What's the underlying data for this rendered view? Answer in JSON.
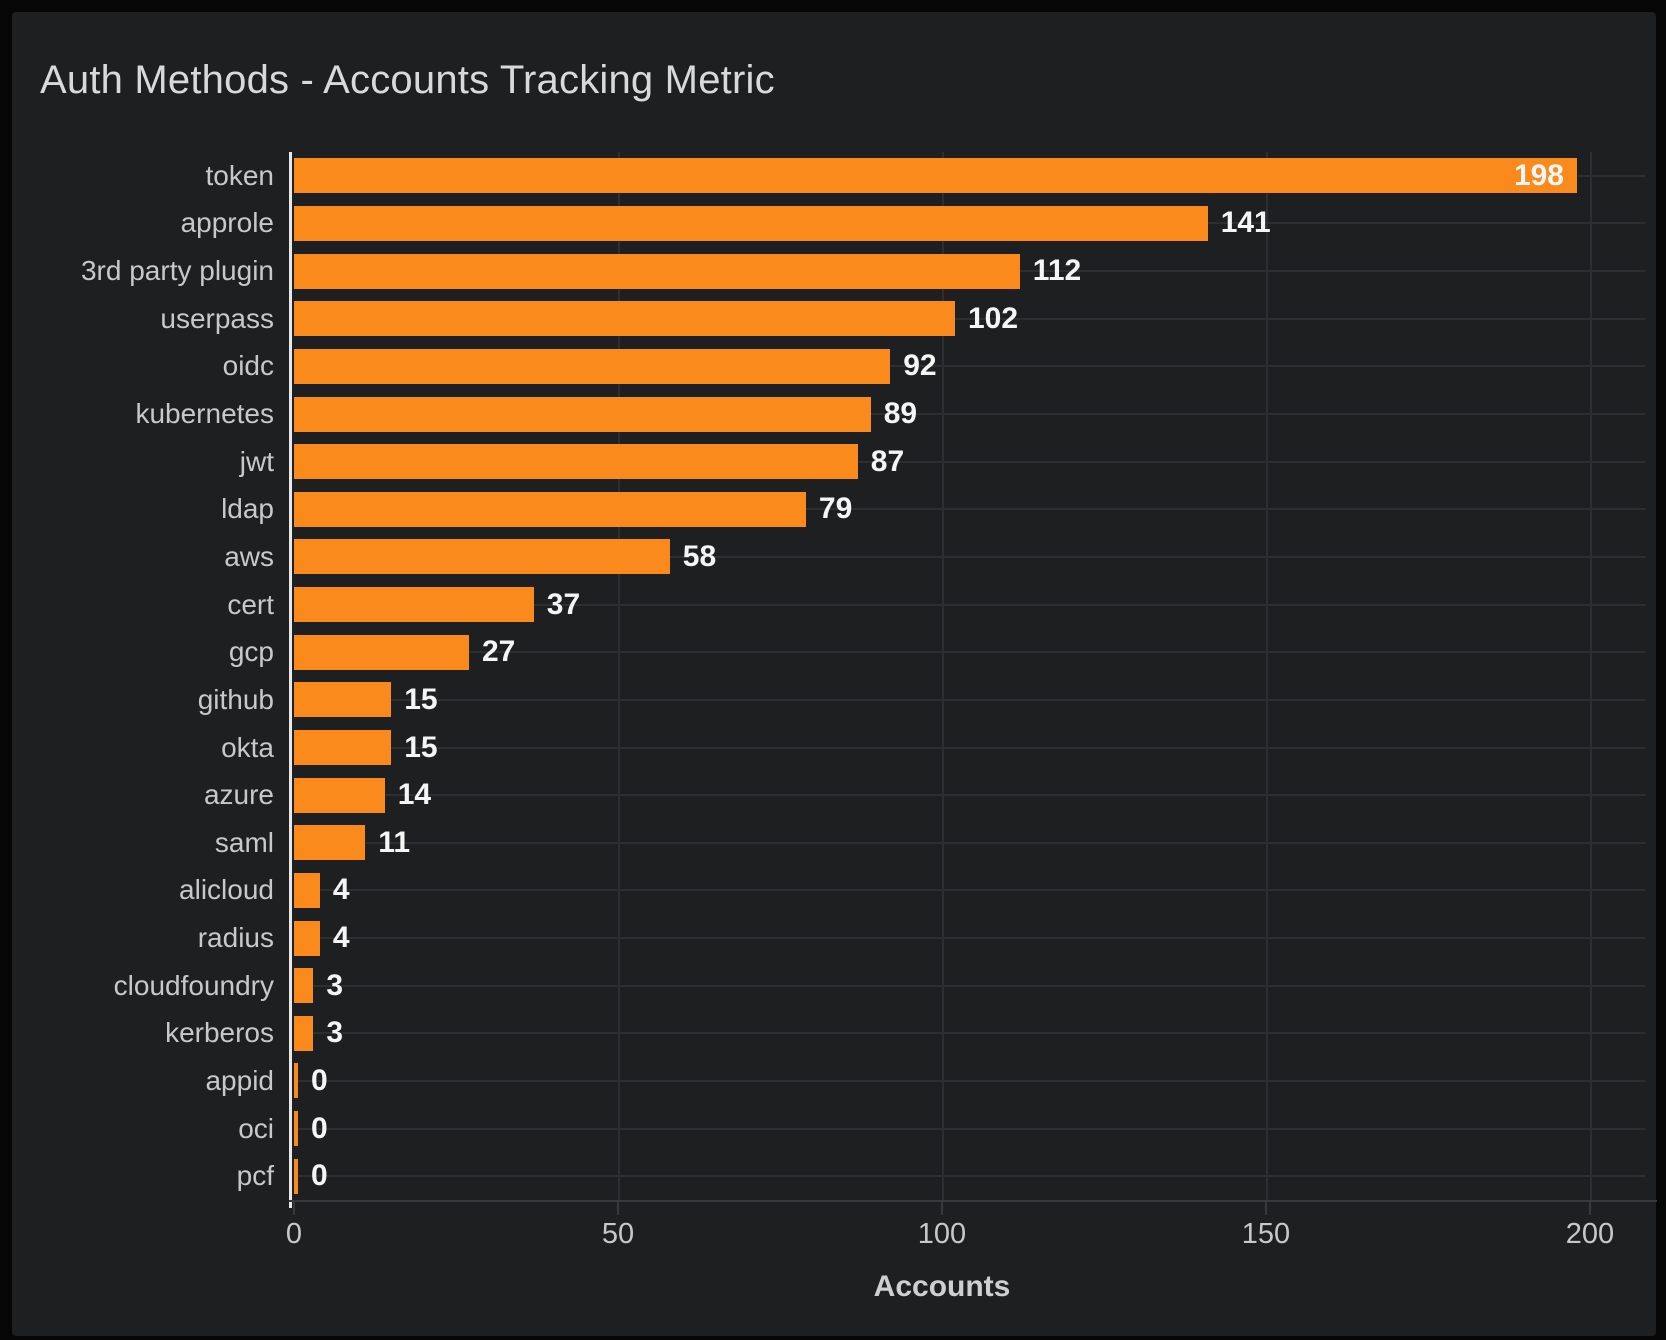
{
  "panel": {
    "title": "Auth Methods - Accounts Tracking Metric"
  },
  "chart_data": {
    "type": "bar",
    "orientation": "horizontal",
    "title": "Auth Methods - Accounts Tracking Metric",
    "categories": [
      "token",
      "approle",
      "3rd party plugin",
      "userpass",
      "oidc",
      "kubernetes",
      "jwt",
      "ldap",
      "aws",
      "cert",
      "gcp",
      "github",
      "okta",
      "azure",
      "saml",
      "alicloud",
      "radius",
      "cloudfoundry",
      "kerberos",
      "appid",
      "oci",
      "pcf"
    ],
    "values": [
      198,
      141,
      112,
      102,
      92,
      89,
      87,
      79,
      58,
      37,
      27,
      15,
      15,
      14,
      11,
      4,
      4,
      3,
      3,
      0,
      0,
      0
    ],
    "value_labels_shown": true,
    "xlabel": "Accounts",
    "ylabel": "",
    "xlim": [
      0,
      200
    ],
    "xticks": [
      0,
      50,
      100,
      150,
      200
    ],
    "grid": true,
    "legend": "none"
  },
  "colors": {
    "bar": "#f98a1b",
    "panel_bg": "#1e1f20",
    "page_bg": "#060606",
    "title_text": "#d8d9da",
    "label_text": "#c8c8ca",
    "value_text": "#f5f5f5",
    "grid": "#2d2e31",
    "axis_line": "#e8e8e8",
    "baseline": "#39393d",
    "tick_text": "#c8c8ca",
    "axis_title_text": "#cfcfd1"
  }
}
